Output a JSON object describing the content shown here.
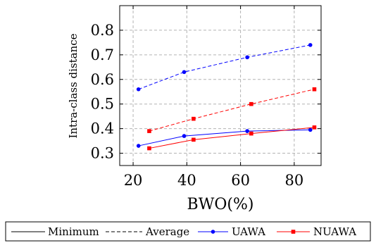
{
  "chart_data": {
    "type": "line",
    "xlabel": "BWO(%)",
    "ylabel": "Intra-class distance",
    "xlim": [
      15,
      90
    ],
    "ylim": [
      0.25,
      0.9
    ],
    "xticks": [
      20,
      40,
      60,
      80
    ],
    "yticks": [
      0.3,
      0.4,
      0.5,
      0.6,
      0.7,
      0.8
    ],
    "xtick_labels": [
      "20",
      "40",
      "60",
      "80"
    ],
    "ytick_labels": [
      "0.3",
      "0.4",
      "0.5",
      "0.6",
      "0.7",
      "0.8"
    ],
    "grid": true,
    "legend_position": "below",
    "legend": [
      {
        "label": "Minimum",
        "color": "#000000",
        "style": "solid",
        "marker": "none"
      },
      {
        "label": "Average",
        "color": "#000000",
        "style": "dashed",
        "marker": "none"
      },
      {
        "label": "UAWA",
        "color": "#0000ff",
        "style": "solid",
        "marker": "circle"
      },
      {
        "label": "NUAWA",
        "color": "#ff0000",
        "style": "solid",
        "marker": "square"
      }
    ],
    "series": [
      {
        "name": "UAWA Average",
        "group": "UAWA",
        "color": "#0000ff",
        "style": "dashed",
        "marker": "circle",
        "x": [
          22,
          39,
          62.5,
          86
        ],
        "y": [
          0.56,
          0.63,
          0.69,
          0.74
        ]
      },
      {
        "name": "UAWA Minimum",
        "group": "UAWA",
        "color": "#0000ff",
        "style": "solid",
        "marker": "circle",
        "x": [
          22,
          39,
          62.5,
          86
        ],
        "y": [
          0.33,
          0.37,
          0.39,
          0.395
        ]
      },
      {
        "name": "NUAWA Average",
        "group": "NUAWA",
        "color": "#ff0000",
        "style": "dashed",
        "marker": "square",
        "x": [
          26,
          42.5,
          64,
          87.5
        ],
        "y": [
          0.39,
          0.44,
          0.5,
          0.56
        ]
      },
      {
        "name": "NUAWA Minimum",
        "group": "NUAWA",
        "color": "#ff0000",
        "style": "solid",
        "marker": "square",
        "x": [
          26,
          42.5,
          64,
          87.5
        ],
        "y": [
          0.32,
          0.355,
          0.38,
          0.405
        ]
      }
    ]
  }
}
